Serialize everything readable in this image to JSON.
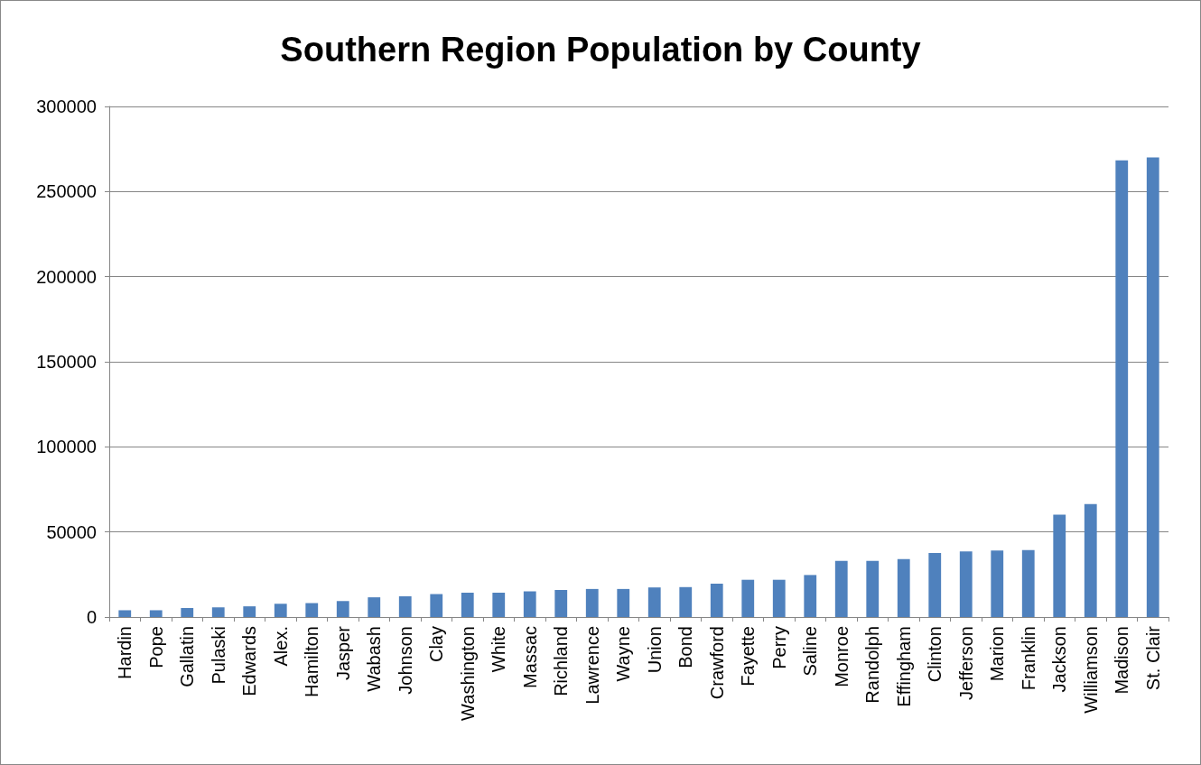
{
  "chart_data": {
    "type": "bar",
    "title": "Southern Region Population by County",
    "categories": [
      "Hardin",
      "Pope",
      "Gallatin",
      "Pulaski",
      "Edwards",
      "Alex.",
      "Hamilton",
      "Jasper",
      "Wabash",
      "Johnson",
      "Clay",
      "Washington",
      "White",
      "Massac",
      "Richland",
      "Lawrence",
      "Wayne",
      "Union",
      "Bond",
      "Crawford",
      "Fayette",
      "Perry",
      "Saline",
      "Monroe",
      "Randolph",
      "Effingham",
      "Clinton",
      "Jefferson",
      "Marion",
      "Franklin",
      "Jackson",
      "Williamson",
      "Madison",
      "St. Clair"
    ],
    "values": [
      4000,
      4000,
      5300,
      5700,
      6300,
      7800,
      8200,
      9400,
      11600,
      12200,
      13500,
      14300,
      14300,
      15100,
      15900,
      16500,
      16500,
      17400,
      17600,
      19600,
      21900,
      21900,
      24700,
      33000,
      33000,
      34000,
      37600,
      38500,
      39100,
      39300,
      60100,
      66400,
      268300,
      270100
    ],
    "color": "#4f81bd",
    "ylim": [
      0,
      300000
    ],
    "yticks": [
      0,
      50000,
      100000,
      150000,
      200000,
      250000,
      300000
    ],
    "grid": "y"
  }
}
